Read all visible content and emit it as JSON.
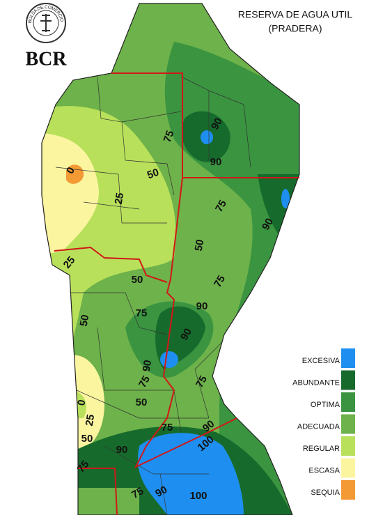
{
  "logo": {
    "text": "BCR",
    "ring": "BOLSA DE COMERCIO DE ROSARIO"
  },
  "title": [
    "RESERVA DE AGUA UTIL",
    "(PRADERA)"
  ],
  "legend": [
    {
      "label": "EXCESIVA",
      "color": "#1e8ff0"
    },
    {
      "label": "ABUNDANTE",
      "color": "#166b2c"
    },
    {
      "label": "OPTIMA",
      "color": "#3a9440"
    },
    {
      "label": "ADECUADA",
      "color": "#6db24a"
    },
    {
      "label": "REGULAR",
      "color": "#b8e05a"
    },
    {
      "label": "ESCASA",
      "color": "#fbf5a0"
    },
    {
      "label": "SEQUIA",
      "color": "#f39a35"
    }
  ],
  "contour_labels": [
    90,
    75,
    90,
    50,
    0,
    75,
    25,
    90,
    50,
    25,
    50,
    75,
    90,
    75,
    50,
    90,
    90,
    75,
    75,
    0,
    50,
    25,
    75,
    90,
    100,
    50,
    90,
    75,
    75,
    90,
    100
  ]
}
